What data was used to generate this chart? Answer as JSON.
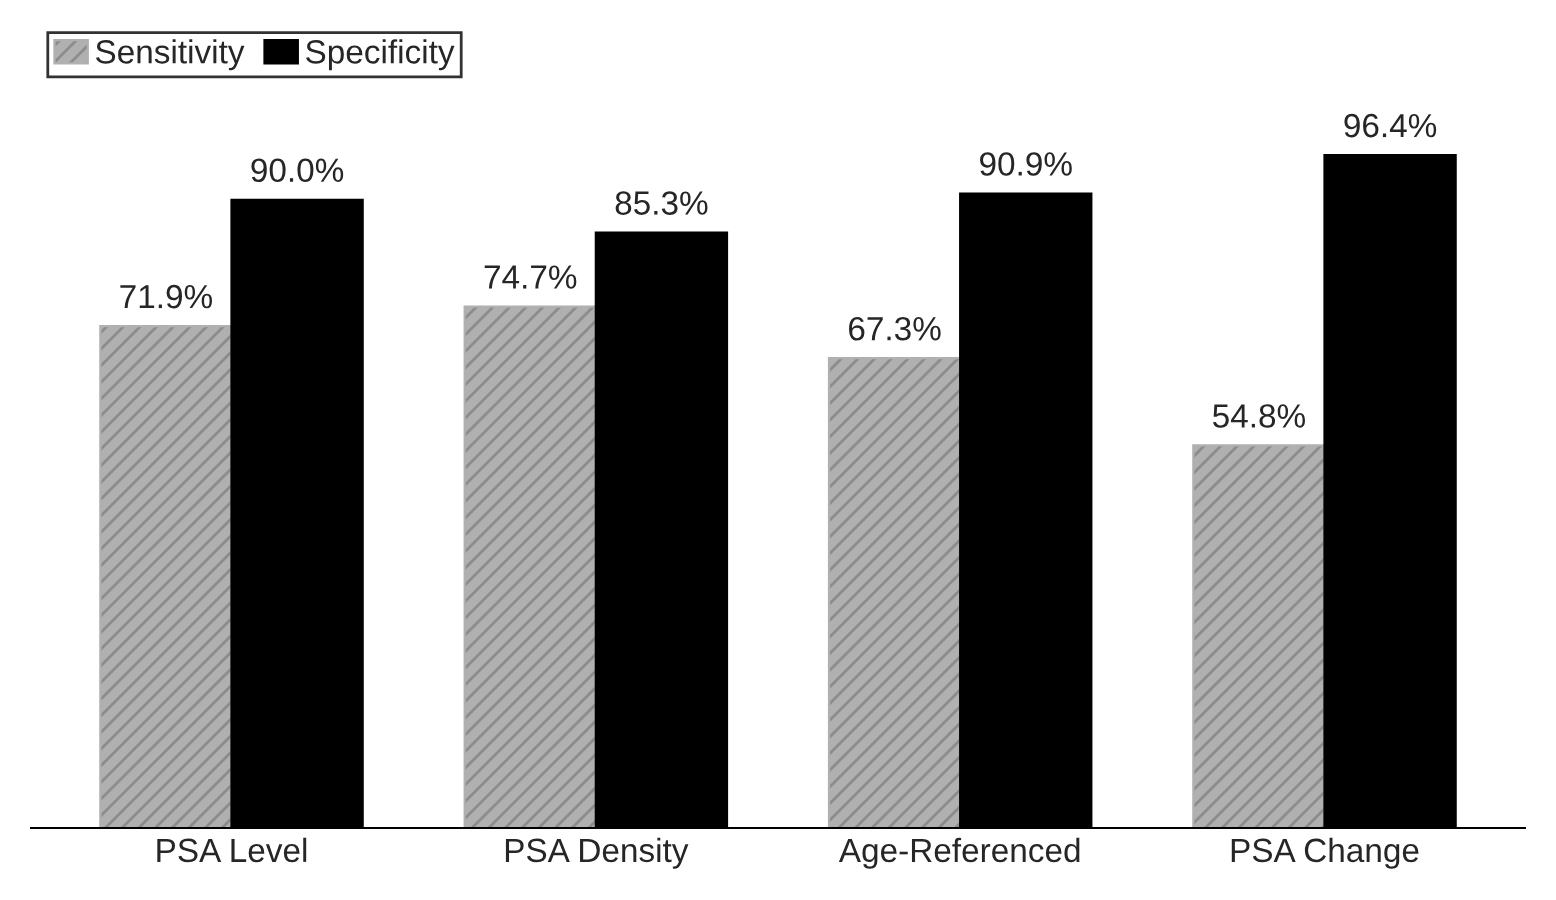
{
  "chart_data": {
    "type": "bar",
    "categories": [
      "PSA Level",
      "PSA Density",
      "Age-Referenced",
      "PSA Change"
    ],
    "series": [
      {
        "name": "Sensitivity",
        "color": "#b0b0b0",
        "values": [
          71.9,
          74.7,
          67.3,
          54.8
        ],
        "value_labels": [
          "71.9%",
          "74.7%",
          "67.3%",
          "54.8%"
        ]
      },
      {
        "name": "Specificity",
        "color": "#000000",
        "values": [
          90.0,
          85.3,
          90.9,
          96.4
        ],
        "value_labels": [
          "90.0%",
          "85.3%",
          "90.9%",
          "96.4%"
        ]
      }
    ],
    "legend": "top left",
    "grid": false
  }
}
